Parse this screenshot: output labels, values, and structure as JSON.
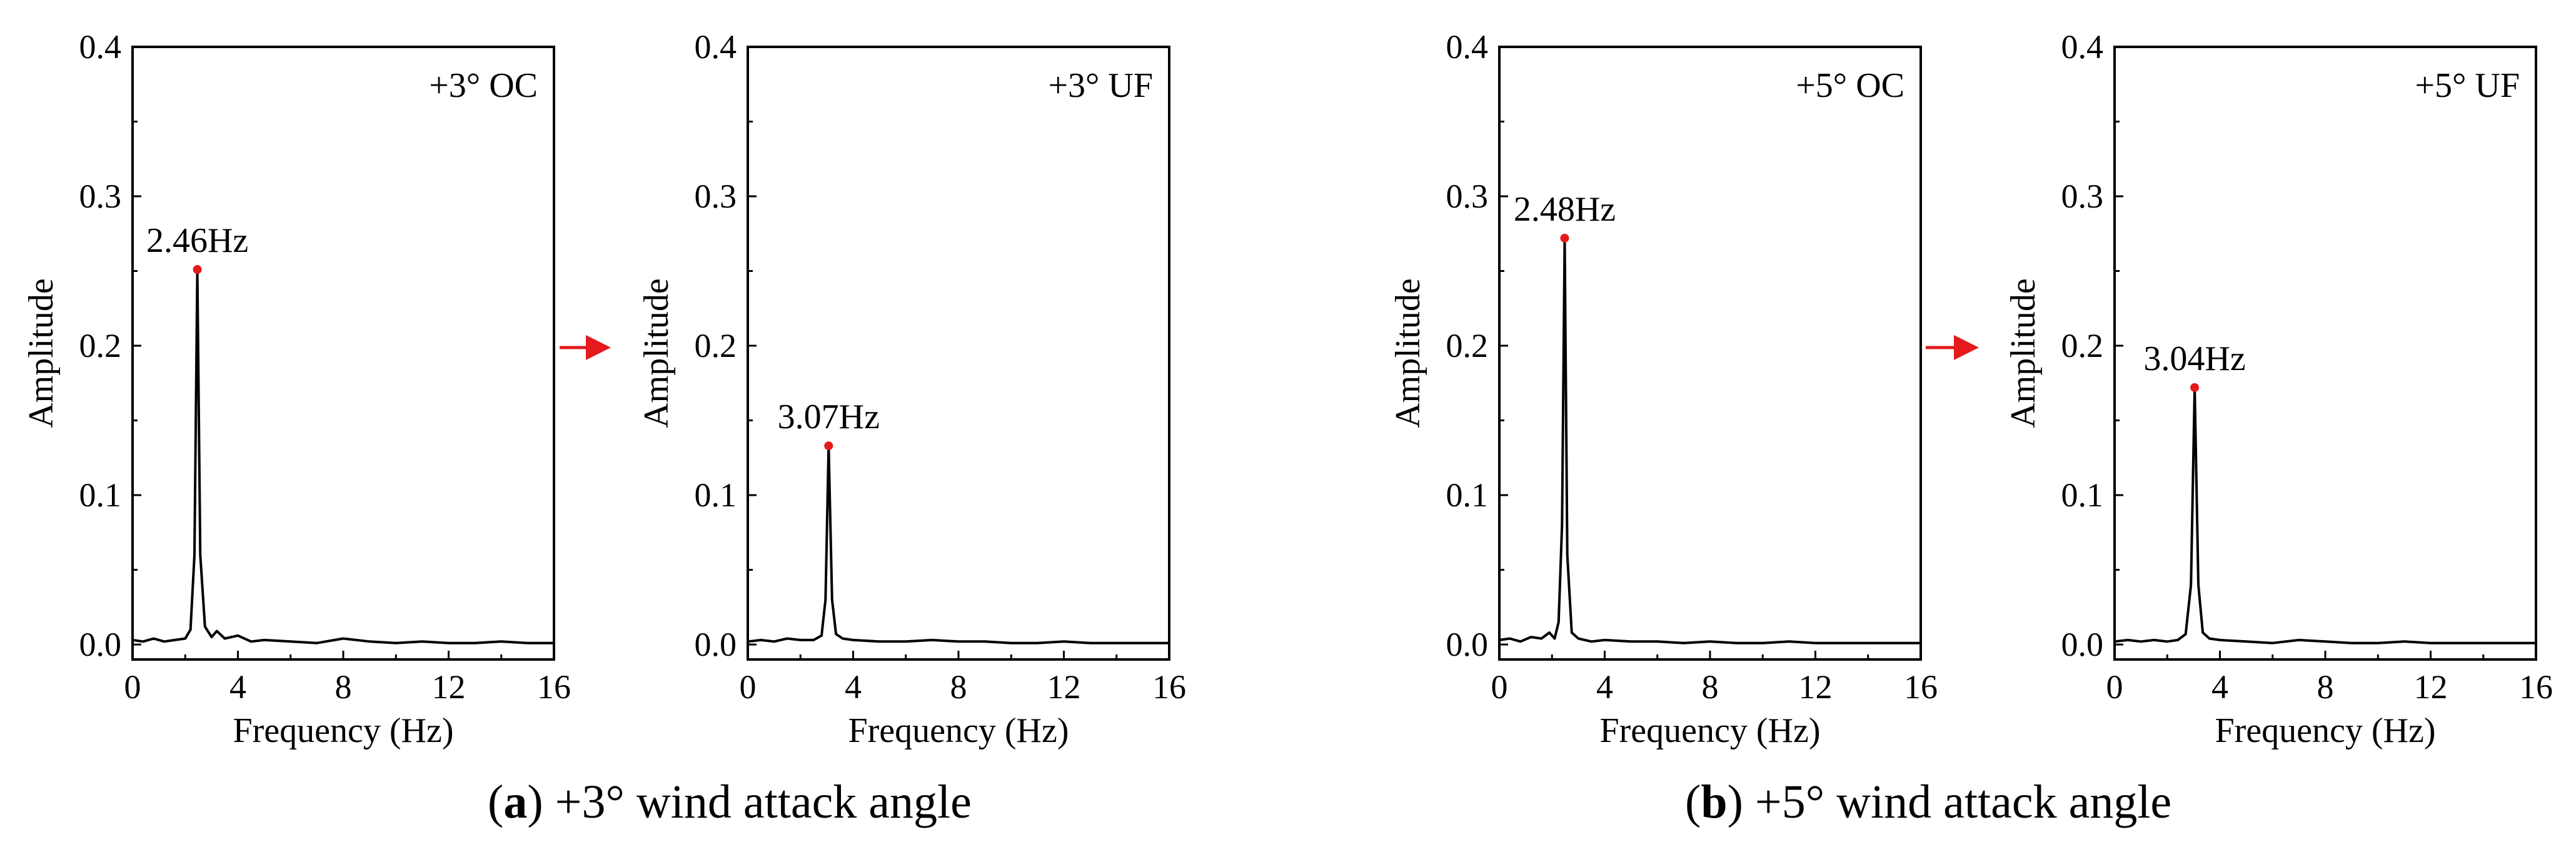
{
  "figure": {
    "captions": [
      {
        "letter": "a",
        "open": "(",
        "close": ")",
        "text": " +3° wind attack angle"
      },
      {
        "letter": "b",
        "open": "(",
        "close": ")",
        "text": " +5° wind attack angle"
      }
    ],
    "colors": {
      "line": "#000000",
      "peak_marker": "#e41a1c",
      "arrow": "#e41a1c",
      "axes": "#000000"
    }
  },
  "chart_data": [
    {
      "type": "line",
      "title": "+3° OC",
      "xlabel": "Frequency (Hz)",
      "ylabel": "Amplitude",
      "xlim": [
        0,
        16
      ],
      "ylim": [
        -0.01,
        0.4
      ],
      "xticks": [
        0,
        4,
        8,
        12,
        16
      ],
      "yticks": [
        0.0,
        0.1,
        0.2,
        0.3,
        0.4
      ],
      "ytick_labels": [
        "0.0",
        "0.1",
        "0.2",
        "0.3",
        "0.4"
      ],
      "peak": {
        "x": 2.46,
        "y": 0.251,
        "label": "2.46Hz"
      },
      "series": [
        {
          "x": [
            0,
            0.4,
            0.8,
            1.2,
            1.6,
            2.0,
            2.2,
            2.35,
            2.46,
            2.57,
            2.75,
            3.0,
            3.2,
            3.5,
            4.0,
            4.5,
            5.0,
            6.0,
            7.0,
            8.0,
            9.0,
            10.0,
            11.0,
            12.0,
            13.0,
            14.0,
            15.0,
            16.0
          ],
          "y": [
            0.003,
            0.002,
            0.004,
            0.002,
            0.003,
            0.004,
            0.01,
            0.06,
            0.251,
            0.06,
            0.012,
            0.005,
            0.009,
            0.004,
            0.006,
            0.002,
            0.003,
            0.002,
            0.001,
            0.004,
            0.002,
            0.001,
            0.002,
            0.001,
            0.001,
            0.002,
            0.001,
            0.001
          ]
        }
      ]
    },
    {
      "type": "line",
      "title": "+3° UF",
      "xlabel": "Frequency (Hz)",
      "ylabel": "Amplitude",
      "xlim": [
        0,
        16
      ],
      "ylim": [
        -0.01,
        0.4
      ],
      "xticks": [
        0,
        4,
        8,
        12,
        16
      ],
      "yticks": [
        0.0,
        0.1,
        0.2,
        0.3,
        0.4
      ],
      "ytick_labels": [
        "0.0",
        "0.1",
        "0.2",
        "0.3",
        "0.4"
      ],
      "peak": {
        "x": 3.07,
        "y": 0.133,
        "label": "3.07Hz"
      },
      "series": [
        {
          "x": [
            0,
            0.5,
            1.0,
            1.5,
            2.0,
            2.5,
            2.8,
            2.95,
            3.07,
            3.2,
            3.35,
            3.6,
            4.0,
            5.0,
            6.0,
            7.0,
            8.0,
            9.0,
            10.0,
            11.0,
            12.0,
            13.0,
            14.0,
            15.0,
            16.0
          ],
          "y": [
            0.002,
            0.003,
            0.002,
            0.004,
            0.003,
            0.003,
            0.006,
            0.03,
            0.133,
            0.03,
            0.007,
            0.004,
            0.003,
            0.002,
            0.002,
            0.003,
            0.002,
            0.002,
            0.001,
            0.001,
            0.002,
            0.001,
            0.001,
            0.001,
            0.001
          ]
        }
      ]
    },
    {
      "type": "line",
      "title": "+5° OC",
      "xlabel": "Frequency (Hz)",
      "ylabel": "Amplitude",
      "xlim": [
        0,
        16
      ],
      "ylim": [
        -0.01,
        0.4
      ],
      "xticks": [
        0,
        4,
        8,
        12,
        16
      ],
      "yticks": [
        0.0,
        0.1,
        0.2,
        0.3,
        0.4
      ],
      "ytick_labels": [
        "0.0",
        "0.1",
        "0.2",
        "0.3",
        "0.4"
      ],
      "peak": {
        "x": 2.48,
        "y": 0.272,
        "label": "2.48Hz"
      },
      "series": [
        {
          "x": [
            0,
            0.4,
            0.8,
            1.2,
            1.6,
            1.9,
            2.1,
            2.25,
            2.38,
            2.48,
            2.58,
            2.75,
            3.0,
            3.5,
            4.0,
            5.0,
            6.0,
            7.0,
            8.0,
            9.0,
            10.0,
            11.0,
            12.0,
            13.0,
            14.0,
            15.0,
            16.0
          ],
          "y": [
            0.003,
            0.004,
            0.002,
            0.005,
            0.004,
            0.008,
            0.004,
            0.015,
            0.08,
            0.272,
            0.06,
            0.008,
            0.004,
            0.002,
            0.003,
            0.002,
            0.002,
            0.001,
            0.002,
            0.001,
            0.001,
            0.002,
            0.001,
            0.001,
            0.001,
            0.001,
            0.001
          ]
        }
      ]
    },
    {
      "type": "line",
      "title": "+5° UF",
      "xlabel": "Frequency (Hz)",
      "ylabel": "Amplitude",
      "xlim": [
        0,
        16
      ],
      "ylim": [
        -0.01,
        0.4
      ],
      "xticks": [
        0,
        4,
        8,
        12,
        16
      ],
      "yticks": [
        0.0,
        0.1,
        0.2,
        0.3,
        0.4
      ],
      "ytick_labels": [
        "0.0",
        "0.1",
        "0.2",
        "0.3",
        "0.4"
      ],
      "peak": {
        "x": 3.04,
        "y": 0.172,
        "label": "3.04Hz"
      },
      "series": [
        {
          "x": [
            0,
            0.5,
            1.0,
            1.5,
            2.0,
            2.4,
            2.7,
            2.9,
            3.04,
            3.18,
            3.35,
            3.6,
            4.0,
            5.0,
            6.0,
            7.0,
            8.0,
            9.0,
            10.0,
            11.0,
            12.0,
            13.0,
            14.0,
            15.0,
            16.0
          ],
          "y": [
            0.002,
            0.003,
            0.002,
            0.003,
            0.002,
            0.003,
            0.007,
            0.04,
            0.172,
            0.04,
            0.008,
            0.004,
            0.003,
            0.002,
            0.001,
            0.003,
            0.002,
            0.001,
            0.001,
            0.002,
            0.001,
            0.001,
            0.001,
            0.001,
            0.001
          ]
        }
      ]
    }
  ]
}
